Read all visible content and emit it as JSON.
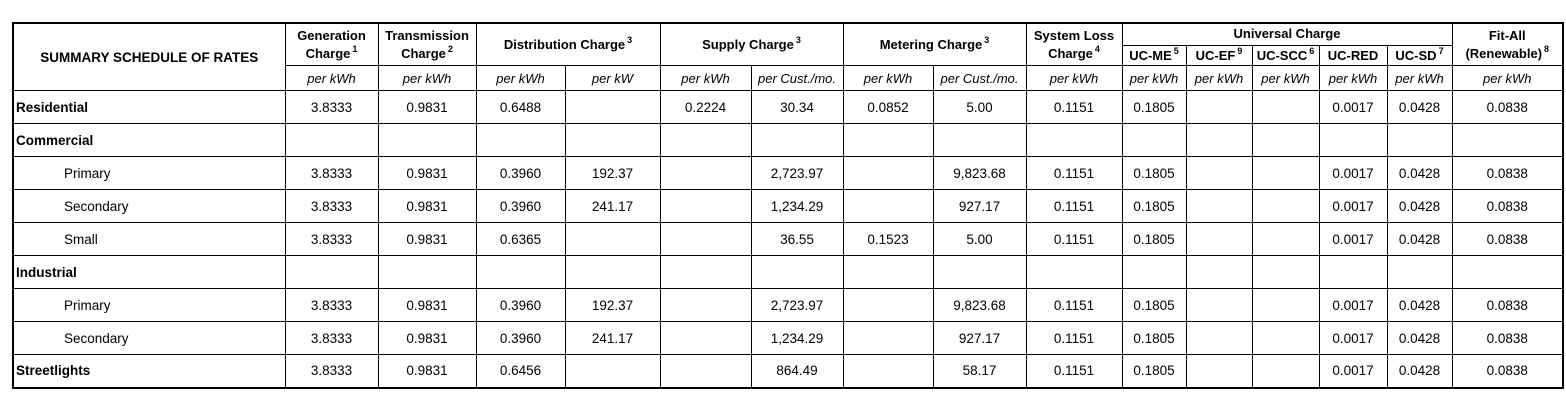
{
  "colors": {
    "border": "#000000",
    "text": "#000000",
    "background": "#ffffff"
  },
  "table": {
    "title": "SUMMARY SCHEDULE OF RATES",
    "columns": {
      "generation": {
        "label": "Generation Charge",
        "sup": "1",
        "unit": "per kWh"
      },
      "transmission": {
        "label": "Transmission Charge",
        "sup": "2",
        "unit": "per kWh"
      },
      "distribution": {
        "label": "Distribution Charge",
        "sup": "3",
        "units": [
          "per kWh",
          "per kW"
        ]
      },
      "supply": {
        "label": "Supply Charge",
        "sup": "3",
        "units": [
          "per kWh",
          "per Cust./mo."
        ]
      },
      "metering": {
        "label": "Metering Charge",
        "sup": "3",
        "units": [
          "per kWh",
          "per Cust./mo."
        ]
      },
      "system_loss": {
        "label": "System Loss Charge",
        "sup": "4",
        "unit": "per kWh"
      },
      "universal": {
        "label": "Universal Charge",
        "subcolumns": [
          {
            "label": "UC-ME",
            "sup": "5",
            "unit": "per kWh"
          },
          {
            "label": "UC-EF",
            "sup": "9",
            "unit": "per kWh"
          },
          {
            "label": "UC-SCC",
            "sup": "6",
            "unit": "per kWh"
          },
          {
            "label": "UC-RED",
            "sup": "",
            "unit": "per kWh"
          },
          {
            "label": "UC-SD",
            "sup": "7",
            "unit": "per kWh"
          }
        ]
      },
      "fit_all": {
        "label": "Fit-All (Renewable)",
        "sup": "8",
        "unit": "per kWh"
      }
    },
    "rows": [
      {
        "label": "Residential",
        "bold": true,
        "indent": false,
        "values": [
          "3.8333",
          "0.9831",
          "0.6488",
          "",
          "0.2224",
          "30.34",
          "0.0852",
          "5.00",
          "0.1151",
          "0.1805",
          "",
          "",
          "0.0017",
          "0.0428",
          "0.0838"
        ]
      },
      {
        "label": "Commercial",
        "bold": true,
        "indent": false,
        "values": [
          "",
          "",
          "",
          "",
          "",
          "",
          "",
          "",
          "",
          "",
          "",
          "",
          "",
          "",
          ""
        ]
      },
      {
        "label": "Primary",
        "bold": false,
        "indent": true,
        "values": [
          "3.8333",
          "0.9831",
          "0.3960",
          "192.37",
          "",
          "2,723.97",
          "",
          "9,823.68",
          "0.1151",
          "0.1805",
          "",
          "",
          "0.0017",
          "0.0428",
          "0.0838"
        ]
      },
      {
        "label": "Secondary",
        "bold": false,
        "indent": true,
        "values": [
          "3.8333",
          "0.9831",
          "0.3960",
          "241.17",
          "",
          "1,234.29",
          "",
          "927.17",
          "0.1151",
          "0.1805",
          "",
          "",
          "0.0017",
          "0.0428",
          "0.0838"
        ]
      },
      {
        "label": "Small",
        "bold": false,
        "indent": true,
        "values": [
          "3.8333",
          "0.9831",
          "0.6365",
          "",
          "",
          "36.55",
          "0.1523",
          "5.00",
          "0.1151",
          "0.1805",
          "",
          "",
          "0.0017",
          "0.0428",
          "0.0838"
        ]
      },
      {
        "label": "Industrial",
        "bold": true,
        "indent": false,
        "values": [
          "",
          "",
          "",
          "",
          "",
          "",
          "",
          "",
          "",
          "",
          "",
          "",
          "",
          "",
          ""
        ]
      },
      {
        "label": "Primary",
        "bold": false,
        "indent": true,
        "values": [
          "3.8333",
          "0.9831",
          "0.3960",
          "192.37",
          "",
          "2,723.97",
          "",
          "9,823.68",
          "0.1151",
          "0.1805",
          "",
          "",
          "0.0017",
          "0.0428",
          "0.0838"
        ]
      },
      {
        "label": "Secondary",
        "bold": false,
        "indent": true,
        "values": [
          "3.8333",
          "0.9831",
          "0.3960",
          "241.17",
          "",
          "1,234.29",
          "",
          "927.17",
          "0.1151",
          "0.1805",
          "",
          "",
          "0.0017",
          "0.0428",
          "0.0838"
        ]
      },
      {
        "label": "Streetlights",
        "bold": true,
        "indent": false,
        "values": [
          "3.8333",
          "0.9831",
          "0.6456",
          "",
          "",
          "864.49",
          "",
          "58.17",
          "0.1151",
          "0.1805",
          "",
          "",
          "0.0017",
          "0.0428",
          "0.0838"
        ]
      }
    ]
  }
}
